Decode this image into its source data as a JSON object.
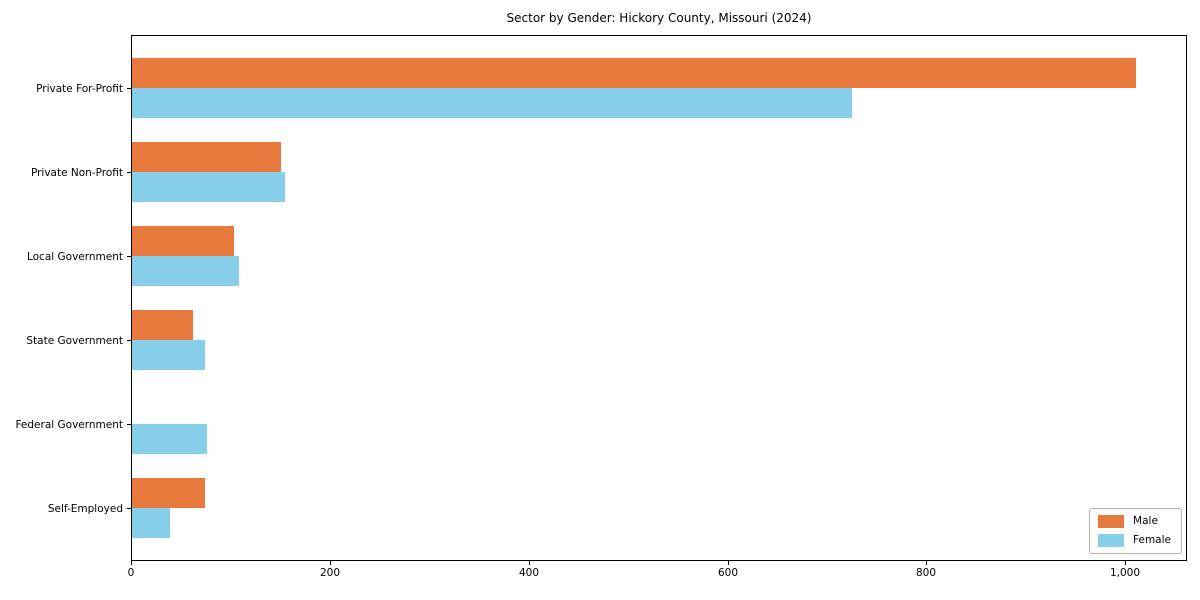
{
  "chart_data": {
    "type": "bar",
    "orientation": "horizontal",
    "title": "Sector by Gender: Hickory County, Missouri (2024)",
    "categories": [
      "Private For-Profit",
      "Private Non-Profit",
      "Local Government",
      "State Government",
      "Federal Government",
      "Self-Employed"
    ],
    "series": [
      {
        "name": "Male",
        "color": "#e8793d",
        "values": [
          1010,
          150,
          103,
          61,
          0,
          73
        ]
      },
      {
        "name": "Female",
        "color": "#87ceeb",
        "values": [
          724,
          154,
          108,
          73,
          75,
          38
        ]
      }
    ],
    "xlabel": "",
    "ylabel": "",
    "xlim": [
      0,
      1062
    ],
    "xticks": {
      "values": [
        0,
        200,
        400,
        600,
        800,
        1000
      ],
      "labels": [
        "0",
        "200",
        "400",
        "600",
        "800",
        "1,000"
      ]
    },
    "grid": false,
    "legend_position": "lower right",
    "background_color": "#ffffff",
    "spine_color": "#000000"
  }
}
